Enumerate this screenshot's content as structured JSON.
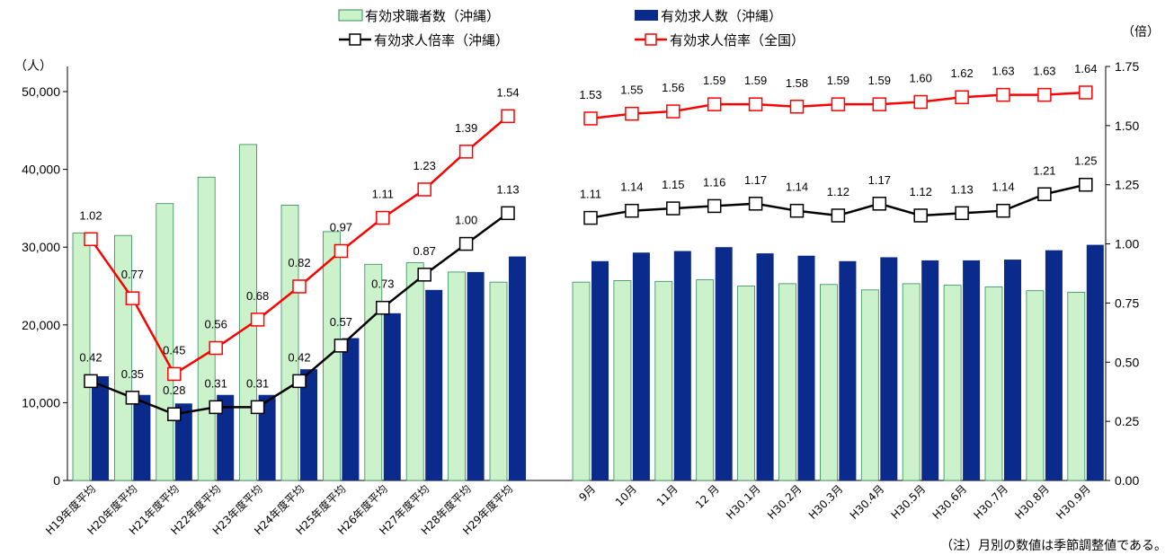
{
  "legend": {
    "applicants": "有効求職者数（沖縄）",
    "openings": "有効求人数（沖縄）",
    "ratio_okinawa": "有効求人倍率（沖縄）",
    "ratio_national": "有効求人倍率（全国）"
  },
  "left_unit": "（人）",
  "right_unit": "（倍）",
  "note": "（注）月別の数値は季節調整値である。",
  "colors": {
    "applicants_fill": "#ccf2cc",
    "applicants_stroke": "#2e8b57",
    "openings_fill": "#0a2a8c",
    "national_line": "#ff0000",
    "okinawa_line": "#000000"
  },
  "chart_data": {
    "type": "bar",
    "categories": [
      "H19年度平均",
      "H20年度平均",
      "H21年度平均",
      "H22年度平均",
      "H23年度平均",
      "H24年度平均",
      "H25年度平均",
      "H26年度平均",
      "H27年度平均",
      "H28年度平均",
      "H29年度平均",
      "9月",
      "10月",
      "11月",
      "12 月",
      "H30.1月",
      "H30.2月",
      "H30.3月",
      "H30.4月",
      "H30.5月",
      "H30.6月",
      "H30.7月",
      "H30.8月",
      "H30.9月"
    ],
    "y_left": {
      "ylim": [
        0,
        50000
      ],
      "ticks": [
        0,
        10000,
        20000,
        30000,
        40000,
        50000
      ],
      "tick_labels": [
        "0",
        "10,000",
        "20,000",
        "30,000",
        "40,000",
        "50,000"
      ]
    },
    "y_right": {
      "ylim": [
        0,
        1.75
      ],
      "ticks": [
        0,
        0.25,
        0.5,
        0.75,
        1.0,
        1.25,
        1.5,
        1.75
      ],
      "tick_labels": [
        "0.00",
        "0.25",
        "0.50",
        "0.75",
        "1.00",
        "1.25",
        "1.50",
        "1.75"
      ]
    },
    "series": [
      {
        "name": "有効求職者数（沖縄）",
        "type": "bar",
        "axis": "left",
        "values": [
          31800,
          31500,
          35600,
          39000,
          43200,
          35400,
          32000,
          27800,
          28000,
          26800,
          25500,
          25500,
          25700,
          25600,
          25800,
          25000,
          25300,
          25200,
          24500,
          25300,
          25100,
          24900,
          24400,
          24200
        ]
      },
      {
        "name": "有効求人数（沖縄）",
        "type": "bar",
        "axis": "left",
        "values": [
          13400,
          11000,
          9900,
          11000,
          11000,
          14300,
          18300,
          21500,
          24500,
          26800,
          28800,
          28200,
          29300,
          29500,
          30000,
          29200,
          28900,
          28200,
          28700,
          28300,
          28300,
          28400,
          29600,
          30300
        ]
      },
      {
        "name": "有効求人倍率（沖縄）",
        "type": "line",
        "axis": "right",
        "values": [
          0.42,
          0.35,
          0.28,
          0.31,
          0.31,
          0.42,
          0.57,
          0.73,
          0.87,
          1.0,
          1.13,
          1.11,
          1.14,
          1.15,
          1.16,
          1.17,
          1.14,
          1.12,
          1.17,
          1.12,
          1.13,
          1.14,
          1.21,
          1.25
        ],
        "labels": [
          "0.42",
          "0.35",
          "0.28",
          "0.31",
          "0.31",
          "0.42",
          "0.57",
          "0.73",
          "0.87",
          "1.00",
          "1.13",
          "1.11",
          "1.14",
          "1.15",
          "1.16",
          "1.17",
          "1.14",
          "1.12",
          "1.17",
          "1.12",
          "1.13",
          "1.14",
          "1.21",
          "1.25"
        ]
      },
      {
        "name": "有効求人倍率（全国）",
        "type": "line",
        "axis": "right",
        "values": [
          1.02,
          0.77,
          0.45,
          0.56,
          0.68,
          0.82,
          0.97,
          1.11,
          1.23,
          1.39,
          1.54,
          1.53,
          1.55,
          1.56,
          1.59,
          1.59,
          1.58,
          1.59,
          1.59,
          1.6,
          1.62,
          1.63,
          1.63,
          1.64
        ],
        "labels": [
          "1.02",
          "0.77",
          "0.45",
          "0.56",
          "0.68",
          "0.82",
          "0.97",
          "1.11",
          "1.23",
          "1.39",
          "1.54",
          "1.53",
          "1.55",
          "1.56",
          "1.59",
          "1.59",
          "1.58",
          "1.59",
          "1.59",
          "1.60",
          "1.62",
          "1.63",
          "1.63",
          "1.64"
        ]
      }
    ]
  }
}
